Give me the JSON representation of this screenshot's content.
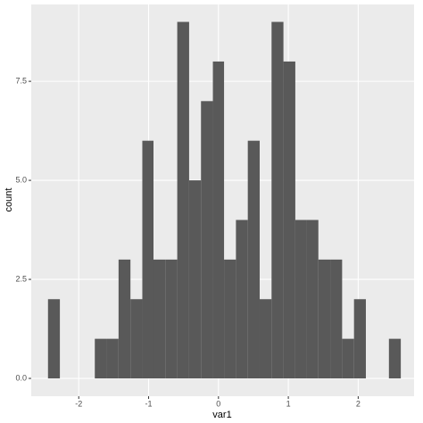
{
  "chart_data": {
    "type": "histogram",
    "x_label": "var1",
    "y_label": "count",
    "bins": [
      -2.44,
      -2.27,
      -2.1,
      -1.94,
      -1.77,
      -1.6,
      -1.43,
      -1.26,
      -1.09,
      -0.93,
      -0.76,
      -0.59,
      -0.42,
      -0.25,
      -0.08,
      0.08,
      0.25,
      0.42,
      0.59,
      0.76,
      0.93,
      1.1,
      1.26,
      1.43,
      1.6,
      1.77,
      1.94,
      2.11,
      2.27,
      2.44,
      2.61
    ],
    "values": [
      2,
      0,
      0,
      0,
      1,
      1,
      3,
      2,
      6,
      3,
      3,
      9,
      5,
      7,
      8,
      3,
      4,
      6,
      2,
      9,
      8,
      4,
      4,
      3,
      3,
      1,
      2,
      0,
      0,
      1
    ],
    "color": "#595959",
    "xlim": [
      -2.68,
      2.8
    ],
    "ylim": [
      -0.45,
      9.44
    ],
    "xticks": [
      -2,
      -1,
      0,
      1,
      2
    ],
    "yticks": [
      {
        "value": 0,
        "label": "0.0"
      },
      {
        "value": 2.5,
        "label": "2.5"
      },
      {
        "value": 5,
        "label": "5.0"
      },
      {
        "value": 7.5,
        "label": "7.5"
      }
    ],
    "grid": true
  }
}
